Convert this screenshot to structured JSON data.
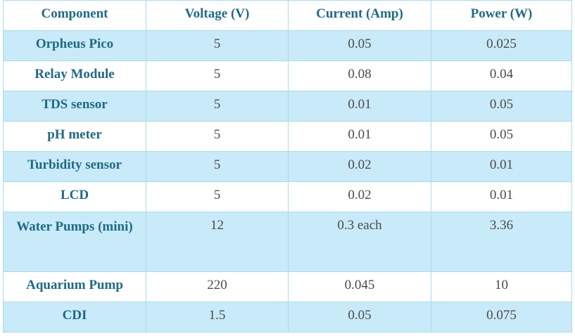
{
  "table": {
    "headers": [
      "Component",
      "Voltage (V)",
      "Current (Amp)",
      "Power (W)"
    ],
    "rows": [
      {
        "component": "Orpheus Pico",
        "voltage": "5",
        "current": "0.05",
        "power": "0.025"
      },
      {
        "component": "Relay Module",
        "voltage": "5",
        "current": "0.08",
        "power": "0.04"
      },
      {
        "component": "TDS sensor",
        "voltage": "5",
        "current": "0.01",
        "power": "0.05"
      },
      {
        "component": "pH meter",
        "voltage": "5",
        "current": "0.01",
        "power": "0.05"
      },
      {
        "component": "Turbidity sensor",
        "voltage": "5",
        "current": "0.02",
        "power": "0.01"
      },
      {
        "component": "LCD",
        "voltage": "5",
        "current": "0.02",
        "power": "0.01"
      },
      {
        "component": "Water Pumps (mini)",
        "voltage": "12",
        "current": "0.3 each",
        "power": "3.36"
      },
      {
        "component": "Aquarium Pump",
        "voltage": "220",
        "current": "0.045",
        "power": "10"
      },
      {
        "component": "CDI",
        "voltage": "1.5",
        "current": "0.05",
        "power": "0.075"
      }
    ]
  },
  "colors": {
    "header_text": "#1f6a86",
    "shaded_row": "#c9eaf8",
    "border": "#a6dcef",
    "body_text": "#4a4a4a"
  }
}
